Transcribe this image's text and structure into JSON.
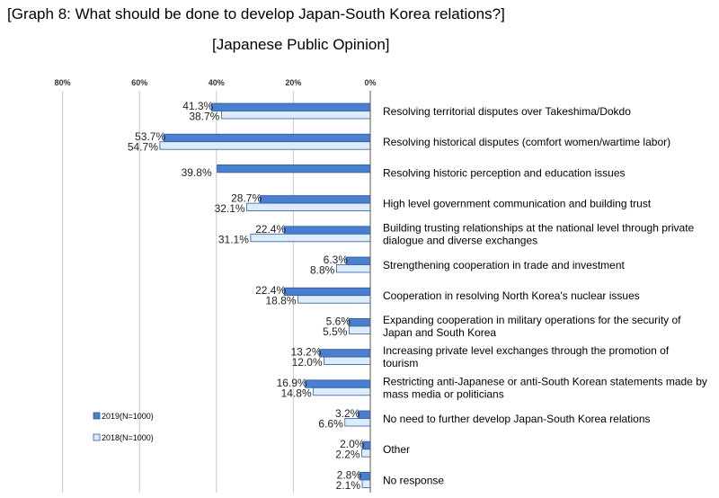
{
  "title": "[Graph 8: What should be done to develop Japan-South Korea relations?]",
  "subtitle": "[Japanese Public Opinion]",
  "colors": {
    "series_2019": "#4a7fd0",
    "series_2018": "#dcecfb",
    "bar_stroke": "#2e5c99",
    "grid": "#c8c8c8"
  },
  "chart_data": {
    "type": "bar",
    "orientation": "horizontal",
    "x_direction": "reversed",
    "xlim": [
      0,
      80
    ],
    "xticks": [
      "80%",
      "60%",
      "40%",
      "20%",
      "0%"
    ],
    "grid": true,
    "legend_position": "bottom-left",
    "categories": [
      [
        "Resolving territorial disputes over Takeshima/Dokdo"
      ],
      [
        "Resolving historical disputes (comfort women/wartime labor)"
      ],
      [
        "Resolving historic perception and education issues"
      ],
      [
        "High level government communication and building trust"
      ],
      [
        "Building trusting relationships at the national level through private",
        "dialogue and diverse exchanges"
      ],
      [
        "Strengthening cooperation in trade and investment"
      ],
      [
        "Cooperation in resolving North Korea's nuclear issues"
      ],
      [
        "Expanding cooperation in military operations for the security of",
        "Japan and South Korea"
      ],
      [
        "Increasing private level exchanges through the promotion of",
        "tourism"
      ],
      [
        "Restricting anti-Japanese or anti-South Korean statements made by",
        "mass media or politicians"
      ],
      [
        "No need to further develop Japan-South Korea relations"
      ],
      [
        "Other"
      ],
      [
        "No response"
      ]
    ],
    "series": [
      {
        "name": "2019(N=1000)",
        "values": [
          41.3,
          53.7,
          39.8,
          28.7,
          22.4,
          6.3,
          22.4,
          5.6,
          13.2,
          16.9,
          3.2,
          2.0,
          2.8
        ],
        "labels": [
          "41.3%",
          "53.7%",
          "39.8%",
          "28.7%",
          "22.4%",
          "6.3%",
          "22.4%",
          "5.6%",
          "13.2%",
          "16.9%",
          "3.2%",
          "2.0%",
          "2.8%"
        ]
      },
      {
        "name": "2018(N=1000)",
        "values": [
          38.7,
          54.7,
          null,
          32.1,
          31.1,
          8.8,
          18.8,
          5.5,
          12.0,
          14.8,
          6.6,
          2.2,
          2.1
        ],
        "labels": [
          "38.7%",
          "54.7%",
          null,
          "32.1%",
          "31.1%",
          "8.8%",
          "18.8%",
          "5.5%",
          "12.0%",
          "14.8%",
          "6.6%",
          "2.2%",
          "2.1%"
        ]
      }
    ]
  }
}
